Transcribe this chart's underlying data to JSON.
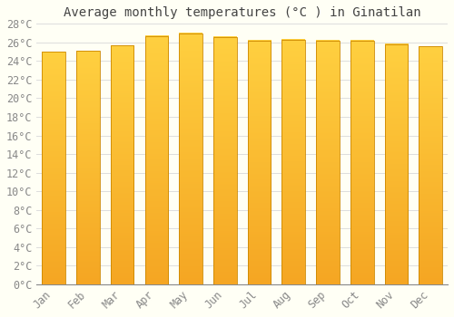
{
  "title": "Average monthly temperatures (°C ) in Ginatilan",
  "categories": [
    "Jan",
    "Feb",
    "Mar",
    "Apr",
    "May",
    "Jun",
    "Jul",
    "Aug",
    "Sep",
    "Oct",
    "Nov",
    "Dec"
  ],
  "values": [
    25.0,
    25.1,
    25.7,
    26.7,
    27.0,
    26.6,
    26.2,
    26.3,
    26.2,
    26.2,
    25.8,
    25.6
  ],
  "bar_color_bottom": "#F5A623",
  "bar_color_top": "#FFD040",
  "bar_edge_color": "#CC8800",
  "background_color": "#FFFFF5",
  "grid_color": "#DDDDDD",
  "ylim": [
    0,
    28
  ],
  "ytick_step": 2,
  "title_fontsize": 10,
  "tick_fontsize": 8.5,
  "font_family": "monospace",
  "title_color": "#444444",
  "tick_color": "#888888"
}
